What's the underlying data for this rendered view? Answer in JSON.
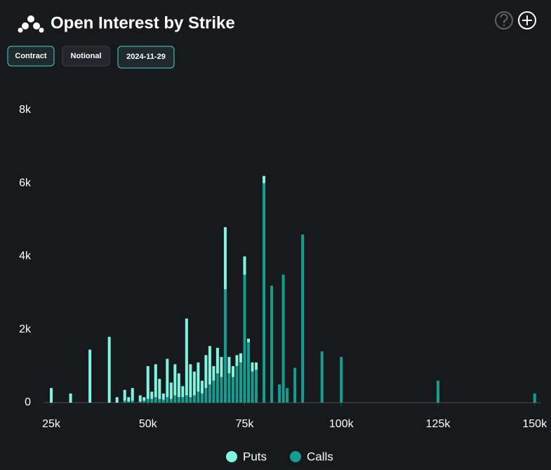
{
  "header": {
    "title": "Open Interest by Strike"
  },
  "controls": {
    "buttons": [
      "Contract",
      "Notional",
      "2024-11-29"
    ]
  },
  "chart_data": {
    "type": "bar",
    "stacked": true,
    "x": [
      25000,
      30000,
      35000,
      40000,
      42000,
      44000,
      45000,
      46000,
      48000,
      49000,
      50000,
      51000,
      52000,
      53000,
      54000,
      55000,
      56000,
      57000,
      58000,
      59000,
      60000,
      61000,
      62000,
      63000,
      64000,
      65000,
      66000,
      67000,
      68000,
      69000,
      70000,
      71000,
      72000,
      73000,
      74000,
      75000,
      76000,
      77000,
      78000,
      80000,
      82000,
      84000,
      85000,
      86000,
      88000,
      90000,
      95000,
      100000,
      125000,
      150000
    ],
    "series": [
      {
        "name": "Puts",
        "color": "#7ff5df",
        "values": [
          400,
          250,
          1450,
          1800,
          150,
          300,
          120,
          350,
          170,
          100,
          900,
          200,
          900,
          550,
          170,
          1050,
          450,
          850,
          650,
          300,
          2100,
          900,
          650,
          800,
          350,
          900,
          1050,
          400,
          700,
          550,
          1700,
          450,
          300,
          300,
          250,
          500,
          100,
          250,
          200,
          200,
          0,
          0,
          0,
          0,
          0,
          0,
          0,
          0,
          0,
          0
        ]
      },
      {
        "name": "Calls",
        "color": "#139e92",
        "values": [
          0,
          0,
          0,
          0,
          0,
          50,
          30,
          50,
          30,
          50,
          100,
          100,
          150,
          100,
          80,
          150,
          100,
          200,
          150,
          150,
          200,
          150,
          200,
          300,
          250,
          400,
          500,
          600,
          800,
          700,
          3100,
          800,
          700,
          1000,
          1100,
          3500,
          1650,
          850,
          900,
          6000,
          3200,
          500,
          3500,
          400,
          950,
          4600,
          1400,
          1250,
          600,
          250
        ]
      }
    ],
    "xlim": [
      23000,
      151500
    ],
    "xticks": [
      {
        "value": 25000,
        "label": "25k"
      },
      {
        "value": 50000,
        "label": "50k"
      },
      {
        "value": 75000,
        "label": "75k"
      },
      {
        "value": 100000,
        "label": "100k"
      },
      {
        "value": 125000,
        "label": "125k"
      },
      {
        "value": 150000,
        "label": "150k"
      }
    ],
    "ylim": [
      0,
      8000
    ],
    "yticks": [
      0,
      {
        "value": 2000,
        "label": "2k"
      },
      {
        "value": 4000,
        "label": "4k"
      },
      {
        "value": 6000,
        "label": "6k"
      },
      {
        "value": 8000,
        "label": "8k"
      }
    ],
    "legend": "bottom"
  }
}
